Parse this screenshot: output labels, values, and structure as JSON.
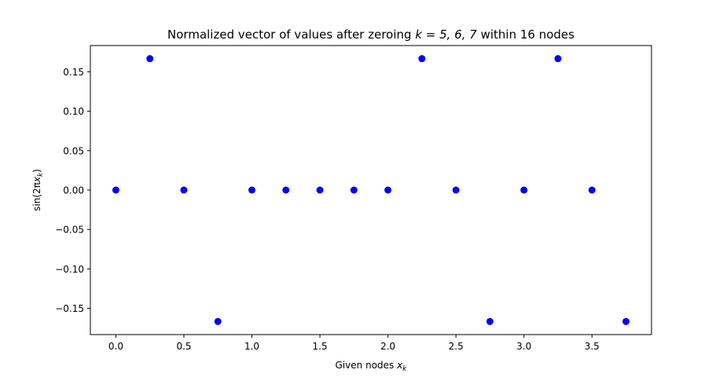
{
  "chart_data": {
    "type": "scatter",
    "title_prefix": "Normalized vector of values after zeroing ",
    "title_math": "k = 5, 6, 7",
    "title_suffix": " within 16 nodes",
    "xlabel_prefix": "Given nodes ",
    "xlabel_math": "x",
    "xlabel_sub": "k",
    "ylabel_prefix": "sin(2π",
    "ylabel_math": "x",
    "ylabel_sub": "k",
    "ylabel_suffix": ")",
    "xlim": [
      -0.1875,
      3.9375
    ],
    "ylim": [
      -0.1833,
      0.1833
    ],
    "xticks": [
      0.0,
      0.5,
      1.0,
      1.5,
      2.0,
      2.5,
      3.0,
      3.5
    ],
    "xtick_labels": [
      "0.0",
      "0.5",
      "1.0",
      "1.5",
      "2.0",
      "2.5",
      "3.0",
      "3.5"
    ],
    "yticks": [
      -0.15,
      -0.1,
      -0.05,
      0.0,
      0.05,
      0.1,
      0.15
    ],
    "ytick_labels": [
      "−0.15",
      "−0.10",
      "−0.05",
      "0.00",
      "0.05",
      "0.10",
      "0.15"
    ],
    "grid": false,
    "marker_color": "#0000ff",
    "x": [
      0.0,
      0.25,
      0.5,
      0.75,
      1.0,
      1.25,
      1.5,
      1.75,
      2.0,
      2.25,
      2.5,
      2.75,
      3.0,
      3.25,
      3.5,
      3.75
    ],
    "y": [
      0.0,
      0.1667,
      0.0,
      -0.1667,
      0.0,
      0.0,
      0.0,
      0.0,
      0.0,
      0.1667,
      0.0,
      -0.1667,
      0.0,
      0.1667,
      0.0,
      -0.1667
    ]
  }
}
